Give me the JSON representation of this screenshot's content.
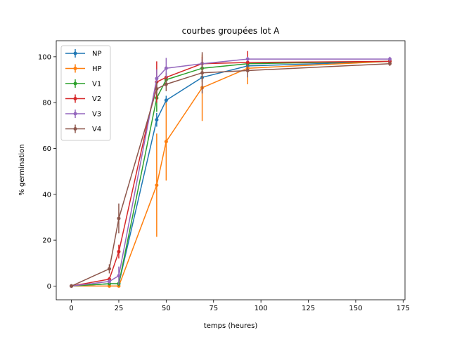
{
  "chart_data": {
    "type": "line",
    "title": "courbes groupées lot A",
    "xlabel": "temps (heures)",
    "ylabel": "% germination",
    "xlim": [
      -8,
      176
    ],
    "ylim": [
      -6,
      107
    ],
    "xticks": [
      0,
      25,
      50,
      75,
      100,
      125,
      150,
      175
    ],
    "yticks": [
      0,
      20,
      40,
      60,
      80,
      100
    ],
    "grid": false,
    "legend_position": "top-left",
    "x": [
      0,
      20,
      25,
      45,
      50,
      69,
      93,
      168
    ],
    "series": [
      {
        "name": "NP",
        "color": "#1f77b4",
        "values": [
          0,
          1,
          1,
          72.5,
          81,
          91,
          96,
          98
        ],
        "errors": [
          0,
          0.5,
          1,
          3,
          2,
          2,
          1.5,
          1
        ]
      },
      {
        "name": "HP",
        "color": "#ff7f0e",
        "values": [
          0,
          0,
          0,
          44,
          63,
          86.5,
          95,
          98
        ],
        "errors": [
          0,
          0.5,
          0.5,
          22.5,
          17,
          14.5,
          7,
          1
        ]
      },
      {
        "name": "V1",
        "color": "#2ca02c",
        "values": [
          0,
          1,
          1,
          82,
          90,
          95,
          97,
          98
        ],
        "errors": [
          0,
          0.5,
          1,
          6,
          3,
          2,
          1.5,
          1
        ]
      },
      {
        "name": "V2",
        "color": "#d62728",
        "values": [
          0,
          3,
          15,
          89,
          91,
          97,
          97.5,
          98
        ],
        "errors": [
          0,
          1,
          3,
          9,
          2,
          3,
          5,
          1
        ]
      },
      {
        "name": "V3",
        "color": "#9467bd",
        "values": [
          0,
          2,
          4.5,
          90.5,
          95,
          97,
          99,
          99
        ],
        "errors": [
          0,
          1,
          4,
          4,
          4.5,
          2,
          1,
          1
        ]
      },
      {
        "name": "V4",
        "color": "#8c564b",
        "values": [
          0,
          7.5,
          29.5,
          86,
          88,
          93,
          94,
          97
        ],
        "errors": [
          0,
          2,
          6.5,
          3,
          3,
          9,
          3,
          1
        ]
      }
    ]
  }
}
